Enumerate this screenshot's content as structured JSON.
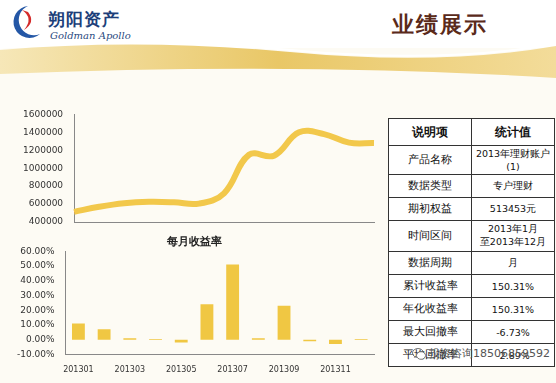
{
  "header": {
    "logo_name": "朔阳资产",
    "logo_subtitle": "Goldman Apollo",
    "title": "业绩展示"
  },
  "chart_data": [
    {
      "type": "line",
      "categories": [
        null,
        null,
        null,
        null,
        null,
        null,
        null,
        null,
        null,
        null,
        null,
        null,
        null
      ],
      "values": [
        513453,
        570000,
        610000,
        625000,
        620000,
        605000,
        720000,
        1150000,
        1140000,
        1400000,
        1380000,
        1285000,
        1280000
      ],
      "color": "#d9262c",
      "line_style": "dashed",
      "marker": "none",
      "ylim": [
        400000,
        1600000
      ],
      "yticks": [
        400000,
        600000,
        800000,
        1000000,
        1200000,
        1400000,
        1600000
      ],
      "grid": false,
      "tick_labels": "y"
    },
    {
      "type": "bar",
      "title": "每月收益率",
      "categories": [
        "201301",
        null,
        "201303",
        null,
        "201305",
        null,
        "201307",
        null,
        "201309",
        null,
        "201311",
        null
      ],
      "values": [
        11,
        7,
        1,
        0.5,
        -2,
        24,
        51,
        1,
        23,
        -1,
        -3,
        0.5
      ],
      "color": "#f0c743",
      "ylim": [
        -10,
        60
      ],
      "yticks": [
        {
          "value": -10,
          "label": "-10.00%"
        },
        {
          "value": 0,
          "label": "0.00%"
        },
        {
          "value": 10,
          "label": "10.00%"
        },
        {
          "value": 20,
          "label": "20.00%"
        },
        {
          "value": 30,
          "label": "30.00%"
        },
        {
          "value": 40,
          "label": "40.00%"
        },
        {
          "value": 50,
          "label": "50.00%"
        },
        {
          "value": 60,
          "label": "60.00%"
        }
      ],
      "grid": false
    }
  ],
  "table": {
    "header": [
      "说明项",
      "统计值"
    ],
    "rows": [
      [
        "产品名称",
        "2013年理财账户(1)"
      ],
      [
        "数据类型",
        "专户理财"
      ],
      [
        "期初权益",
        "513453元"
      ],
      [
        "时间区间",
        [
          "2013年1月",
          "至2013年12月"
        ]
      ],
      [
        "数据周期",
        "月"
      ],
      [
        "累计收益率",
        "150.31%"
      ],
      [
        "年化收益率",
        "150.31%"
      ],
      [
        "最大回撤率",
        "-6.73%"
      ],
      [
        "平均回撤率",
        "-2.89%"
      ]
    ]
  },
  "watermark": "投资咨询18506859592"
}
